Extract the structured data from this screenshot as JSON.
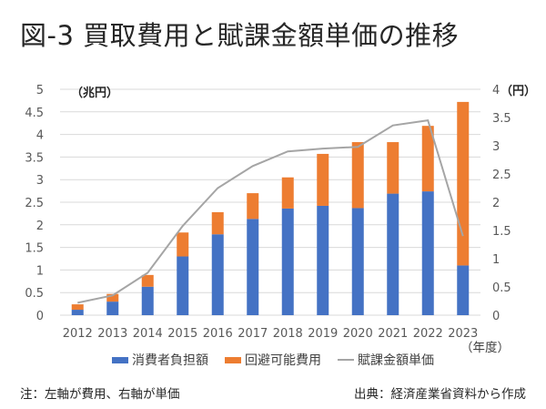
{
  "title": "図-3 買取費用と賦課金額単価の推移",
  "footer": {
    "note": "注：左軸が費用、右軸が単価",
    "source": "出典：経済産業省資料から作成"
  },
  "chart_data": {
    "type": "bar",
    "stacked": true,
    "title": "図-3 買取費用と賦課金額単価の推移",
    "categories": [
      "2012",
      "2013",
      "2014",
      "2015",
      "2016",
      "2017",
      "2018",
      "2019",
      "2020",
      "2021",
      "2022",
      "2023"
    ],
    "xlabel": "（年度）",
    "ylabel": "（兆円）",
    "y2label": "（円）",
    "ylim": [
      0,
      5
    ],
    "y2lim": [
      0,
      4
    ],
    "yticks": [
      "0",
      "0.5",
      "1",
      "1.5",
      "2",
      "2.5",
      "3",
      "3.5",
      "4",
      "4.5",
      "5"
    ],
    "y2ticks": [
      "0",
      "0.5",
      "1",
      "1.5",
      "2",
      "2.5",
      "3",
      "3.5",
      "4"
    ],
    "grid": true,
    "legend_position": "bottom",
    "series": [
      {
        "name": "消費者負担額",
        "type": "bar",
        "axis": "left",
        "color": "#4472C4",
        "values": [
          0.12,
          0.3,
          0.63,
          1.3,
          1.79,
          2.13,
          2.36,
          2.42,
          2.37,
          2.69,
          2.74,
          1.1
        ]
      },
      {
        "name": "回避可能費用",
        "type": "bar",
        "axis": "left",
        "color": "#ED7D31",
        "values": [
          0.12,
          0.17,
          0.26,
          0.53,
          0.49,
          0.57,
          0.69,
          1.15,
          1.46,
          1.14,
          1.45,
          3.62
        ]
      },
      {
        "name": "賦課金額単価",
        "type": "line",
        "axis": "right",
        "color": "#A5A5A5",
        "values": [
          0.22,
          0.35,
          0.75,
          1.58,
          2.25,
          2.64,
          2.9,
          2.95,
          2.98,
          3.36,
          3.45,
          1.4
        ]
      }
    ]
  }
}
